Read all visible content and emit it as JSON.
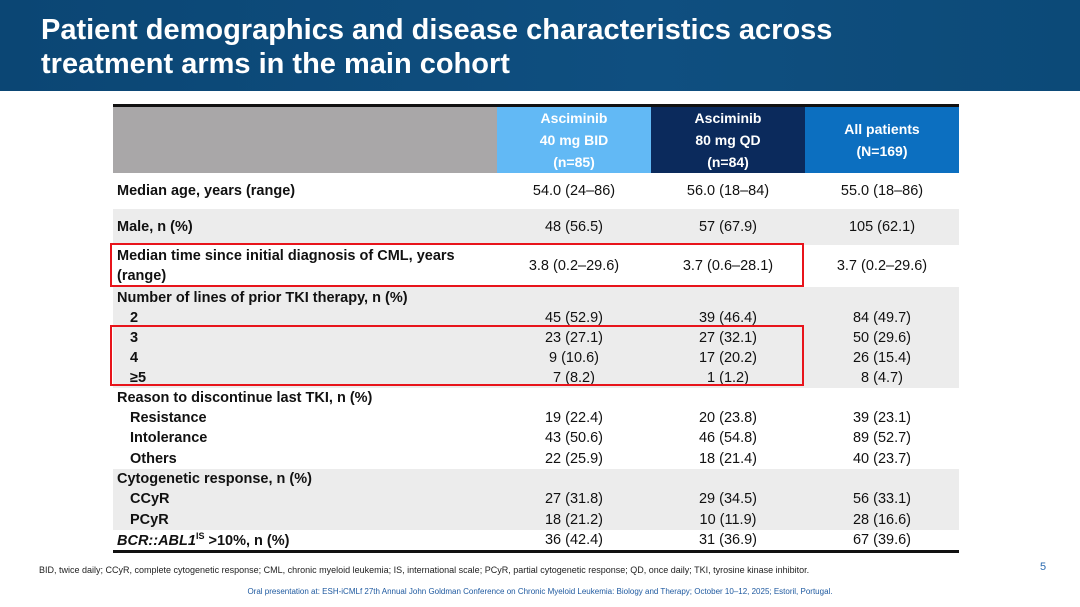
{
  "title": "Patient demographics and disease characteristics across treatment arms in the main cohort",
  "colors": {
    "title_bg": "#0b4674",
    "col1": "#62b9f5",
    "col2": "#0b2a5c",
    "col3": "#0c6fc0",
    "highlight": "#e8141b"
  },
  "columns": [
    {
      "l1": "Asciminib",
      "l2": "40 mg BID",
      "l3": "(n=85)"
    },
    {
      "l1": "Asciminib",
      "l2": "80 mg QD",
      "l3": "(n=84)"
    },
    {
      "l1": "All patients",
      "l2": "(N=169)",
      "l3": ""
    }
  ],
  "rows": [
    {
      "label": "Median age, years (range)",
      "v": [
        "54.0 (24–86)",
        "56.0 (18–84)",
        "55.0 (18–86)"
      ]
    },
    {
      "label": "Male, n (%)",
      "v": [
        "48 (56.5)",
        "57 (67.9)",
        "105 (62.1)"
      ]
    },
    {
      "label": "Median time since initial diagnosis of CML, years (range)",
      "v": [
        "3.8 (0.2–29.6)",
        "3.7 (0.6–28.1)",
        "3.7 (0.2–29.6)"
      ]
    },
    {
      "label": "Number of lines of prior TKI therapy, n (%)",
      "v": [
        "",
        "",
        ""
      ]
    },
    {
      "label": "2",
      "v": [
        "45 (52.9)",
        "39 (46.4)",
        "84 (49.7)"
      ]
    },
    {
      "label": "3",
      "v": [
        "23 (27.1)",
        "27 (32.1)",
        "50 (29.6)"
      ]
    },
    {
      "label": "4",
      "v": [
        "9 (10.6)",
        "17 (20.2)",
        "26 (15.4)"
      ]
    },
    {
      "label": "≥5",
      "v": [
        "7 (8.2)",
        "1 (1.2)",
        "8 (4.7)"
      ]
    },
    {
      "label": "Reason to discontinue last TKI, n (%)",
      "v": [
        "",
        "",
        ""
      ]
    },
    {
      "label": "Resistance",
      "v": [
        "19 (22.4)",
        "20 (23.8)",
        "39 (23.1)"
      ]
    },
    {
      "label": "Intolerance",
      "v": [
        "43 (50.6)",
        "46 (54.8)",
        "89 (52.7)"
      ]
    },
    {
      "label": "Others",
      "v": [
        "22 (25.9)",
        "18 (21.4)",
        "40 (23.7)"
      ]
    },
    {
      "label": "Cytogenetic response, n (%)",
      "v": [
        "",
        "",
        ""
      ]
    },
    {
      "label": "CCyR",
      "v": [
        "27 (31.8)",
        "29 (34.5)",
        "56 (33.1)"
      ]
    },
    {
      "label": "PCyR",
      "v": [
        "18 (21.2)",
        "10 (11.9)",
        "28 (16.6)"
      ]
    },
    {
      "label_italic": "BCR::ABL1",
      "label_sup": "IS",
      "label_rest": " >10%, n (%)",
      "v": [
        "36 (42.4)",
        "31 (36.9)",
        "67 (39.6)"
      ]
    }
  ],
  "footnote": "BID, twice daily; CCyR, complete cytogenetic response; CML, chronic myeloid leukemia; IS, international scale; PCyR, partial cytogenetic response; QD, once daily; TKI, tyrosine kinase inhibitor.",
  "page_number": "5",
  "presentation_note": "Oral presentation at: ESH-iCMLf 27th Annual John Goldman Conference on Chronic Myeloid Leukemia: Biology and Therapy; October 10–12, 2025; Estoril, Portugal."
}
